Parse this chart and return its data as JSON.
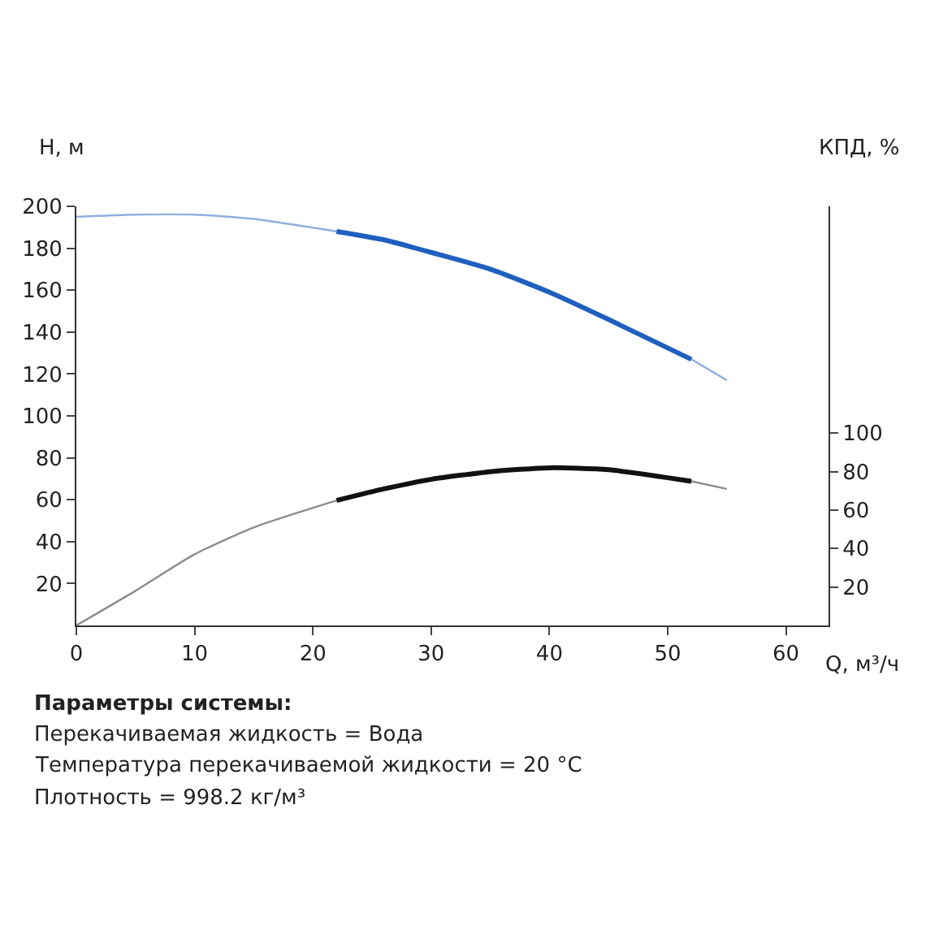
{
  "chart_data": {
    "type": "line",
    "xlabel": "Q, м³/ч",
    "ylabel": "H, м",
    "y2label": "КПД, %",
    "xlim": [
      0,
      63.6
    ],
    "xticks": [
      0,
      10,
      20,
      30,
      40,
      50,
      60
    ],
    "ylim": [
      0,
      200
    ],
    "yticks": [
      20,
      40,
      60,
      80,
      100,
      120,
      140,
      160,
      180,
      200
    ],
    "y2lim": [
      0,
      218
    ],
    "y2ticks": [
      20,
      40,
      60,
      80,
      100
    ],
    "marker": "none",
    "line_style": "solid",
    "series": [
      {
        "color": "#8eb0de",
        "x": [
          0,
          5,
          10,
          15,
          22,
          null,
          52,
          55
        ],
        "values": [
          195,
          196,
          196,
          194,
          188,
          null,
          127,
          117
        ]
      },
      {
        "color": "#1f5fbf",
        "x": [
          22,
          26,
          30,
          35,
          40,
          45,
          52
        ],
        "values": [
          188,
          184,
          178,
          170,
          159,
          146,
          127
        ]
      },
      {
        "color": "#8c8c8c",
        "axis": "y2",
        "x": [
          0,
          5,
          10,
          15,
          22,
          null,
          52,
          55
        ],
        "values": [
          0,
          18,
          37,
          51,
          65,
          null,
          75,
          71
        ]
      },
      {
        "color": "#111111",
        "axis": "y2",
        "x": [
          22,
          26,
          30,
          35,
          40,
          45,
          52
        ],
        "values": [
          65,
          71,
          76,
          80,
          82,
          81,
          75
        ]
      }
    ],
    "annotations": [
      "Параметры системы:",
      "Перекачиваемая жидкость = Вода",
      "Температура перекачиваемой жидкости = 20 °C",
      "Плотность = 998.2 кг/м³"
    ]
  }
}
